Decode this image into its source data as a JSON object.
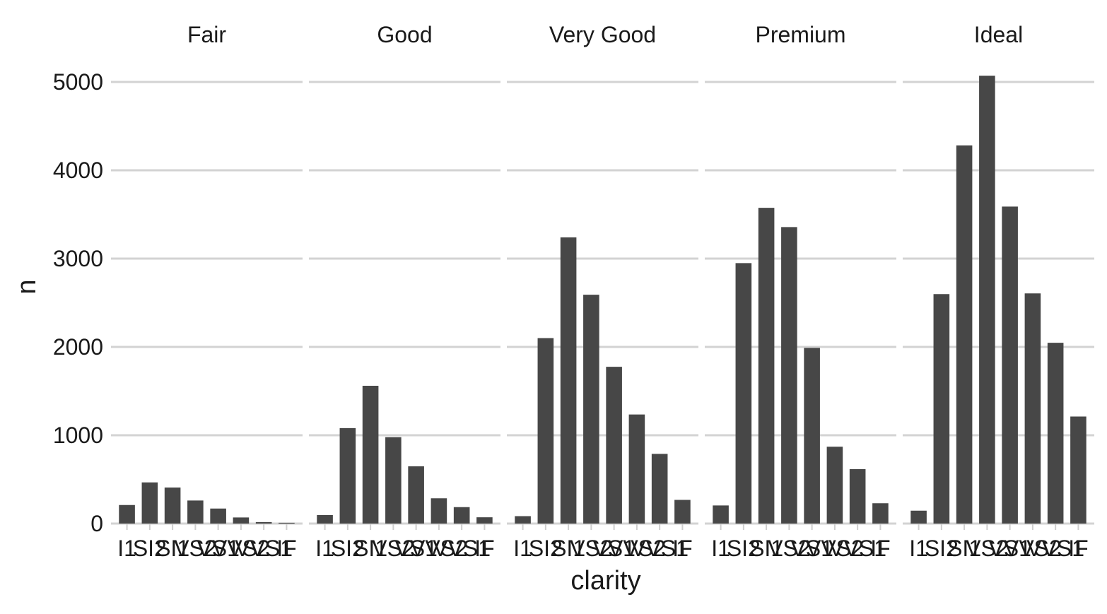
{
  "chart_data": {
    "type": "bar",
    "xlabel": "clarity",
    "ylabel": "n",
    "ylim": [
      0,
      5000
    ],
    "y_ticks": [
      0,
      1000,
      2000,
      3000,
      4000,
      5000
    ],
    "y_tick_labels": [
      "0",
      "1000",
      "2000",
      "3000",
      "4000",
      "5000"
    ],
    "categories": [
      "I1",
      "SI2",
      "SI1",
      "VS2",
      "VS1",
      "VVS2",
      "VVS1",
      "IF"
    ],
    "grid": "horizontal major",
    "bar_color": "#474747",
    "grid_color": "#d3d3d3",
    "panels": [
      {
        "facet": "Fair",
        "values": [
          210,
          466,
          408,
          261,
          170,
          69,
          17,
          9
        ]
      },
      {
        "facet": "Good",
        "values": [
          96,
          1081,
          1560,
          978,
          648,
          286,
          186,
          71
        ]
      },
      {
        "facet": "Very Good",
        "values": [
          84,
          2100,
          3240,
          2591,
          1775,
          1235,
          789,
          268
        ]
      },
      {
        "facet": "Premium",
        "values": [
          205,
          2949,
          3575,
          3357,
          1989,
          870,
          616,
          230
        ]
      },
      {
        "facet": "Ideal",
        "values": [
          146,
          2598,
          4282,
          5071,
          3589,
          2606,
          2047,
          1212
        ]
      }
    ]
  }
}
